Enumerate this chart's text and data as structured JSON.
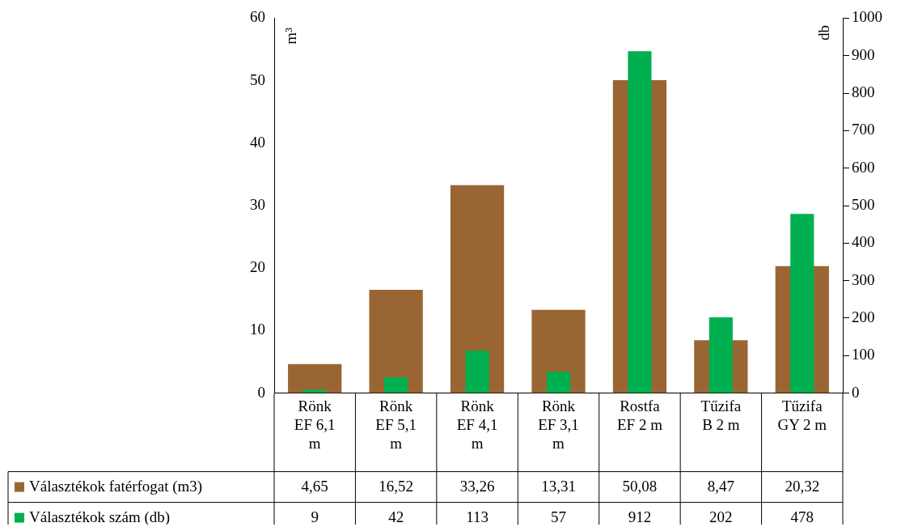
{
  "chart_data": {
    "type": "bar",
    "ylabel": "m³",
    "y2label": "db",
    "categories": [
      "Rönk EF 6,1 m",
      "Rönk EF 5,1 m",
      "Rönk EF 4,1 m",
      "Rönk EF 3,1 m",
      "Rostfa EF 2 m",
      "Tűzifa B 2 m",
      "Tűzifa GY 2 m"
    ],
    "series": [
      {
        "name": "Választékok fatérfogat (m3)",
        "color": "#996633",
        "values": [
          4.65,
          16.52,
          33.26,
          13.31,
          50.08,
          8.47,
          20.32
        ],
        "value_labels": [
          "4,65",
          "16,52",
          "33,26",
          "13,31",
          "50,08",
          "8,47",
          "20,32"
        ]
      },
      {
        "name": "Választékok szám (db)",
        "color": "#00b050",
        "axis": "y2",
        "values": [
          9,
          42,
          113,
          57,
          912,
          202,
          478
        ],
        "value_labels": [
          "9",
          "42",
          "113",
          "57",
          "912",
          "202",
          "478"
        ]
      }
    ],
    "ylim": [
      0,
      60
    ],
    "yticks": [
      0,
      10,
      20,
      30,
      40,
      50,
      60
    ],
    "y2lim": [
      0,
      1000
    ],
    "y2ticks": [
      0,
      100,
      200,
      300,
      400,
      500,
      600,
      700,
      800,
      900,
      1000
    ],
    "grid": false,
    "legend": "bottom"
  }
}
